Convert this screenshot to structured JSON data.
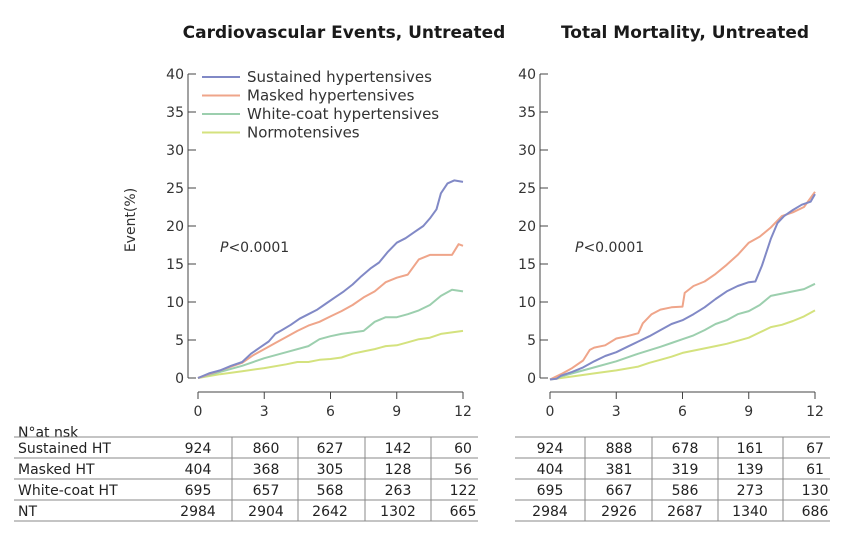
{
  "chart_data": [
    {
      "type": "line",
      "title": "Cardiovascular Events, Untreated",
      "ylabel": "Event(%)",
      "xlabel": "",
      "xlim": [
        0,
        12
      ],
      "ylim": [
        0,
        40
      ],
      "xticks": [
        0,
        3,
        6,
        9,
        12
      ],
      "yticks": [
        0,
        5,
        10,
        15,
        20,
        25,
        30,
        35,
        40
      ],
      "annotation": {
        "italic": "P",
        "text": "<0.0001"
      },
      "legend_position": "top-left",
      "series": [
        {
          "name": "Sustained hypertensives",
          "color": "#8189c6",
          "points": [
            [
              0,
              0
            ],
            [
              0.5,
              0.6
            ],
            [
              1,
              1
            ],
            [
              1.5,
              1.6
            ],
            [
              2,
              2.1
            ],
            [
              2.4,
              3.2
            ],
            [
              2.8,
              4
            ],
            [
              3.2,
              4.8
            ],
            [
              3.5,
              5.8
            ],
            [
              3.8,
              6.3
            ],
            [
              4.2,
              7
            ],
            [
              4.6,
              7.8
            ],
            [
              5,
              8.4
            ],
            [
              5.4,
              9
            ],
            [
              5.8,
              9.8
            ],
            [
              6.2,
              10.6
            ],
            [
              6.6,
              11.4
            ],
            [
              7,
              12.3
            ],
            [
              7.4,
              13.4
            ],
            [
              7.8,
              14.4
            ],
            [
              8.2,
              15.2
            ],
            [
              8.6,
              16.6
            ],
            [
              9,
              17.8
            ],
            [
              9.4,
              18.4
            ],
            [
              9.8,
              19.2
            ],
            [
              10.2,
              20
            ],
            [
              10.5,
              21
            ],
            [
              10.8,
              22.2
            ],
            [
              11,
              24.3
            ],
            [
              11.3,
              25.6
            ],
            [
              11.6,
              26
            ],
            [
              12,
              25.8
            ]
          ]
        },
        {
          "name": "Masked hypertensives",
          "color": "#efa58a",
          "points": [
            [
              0,
              0
            ],
            [
              0.5,
              0.5
            ],
            [
              1,
              1
            ],
            [
              1.5,
              1.5
            ],
            [
              2,
              2
            ],
            [
              2.5,
              3
            ],
            [
              3,
              3.8
            ],
            [
              3.5,
              4.6
            ],
            [
              4,
              5.4
            ],
            [
              4.5,
              6.2
            ],
            [
              5,
              6.9
            ],
            [
              5.5,
              7.4
            ],
            [
              6,
              8.1
            ],
            [
              6.5,
              8.8
            ],
            [
              7,
              9.6
            ],
            [
              7.5,
              10.6
            ],
            [
              8,
              11.4
            ],
            [
              8.5,
              12.6
            ],
            [
              9,
              13.2
            ],
            [
              9.5,
              13.6
            ],
            [
              10,
              15.6
            ],
            [
              10.5,
              16.2
            ],
            [
              11,
              16.2
            ],
            [
              11.5,
              16.2
            ],
            [
              11.8,
              17.6
            ],
            [
              12,
              17.4
            ]
          ]
        },
        {
          "name": "White-coat hypertensives",
          "color": "#9ccfae",
          "points": [
            [
              0,
              0
            ],
            [
              1,
              0.8
            ],
            [
              2,
              1.6
            ],
            [
              3,
              2.6
            ],
            [
              4,
              3.4
            ],
            [
              5,
              4.2
            ],
            [
              5.5,
              5.1
            ],
            [
              6,
              5.5
            ],
            [
              6.5,
              5.8
            ],
            [
              7,
              6
            ],
            [
              7.5,
              6.2
            ],
            [
              8,
              7.4
            ],
            [
              8.5,
              8
            ],
            [
              9,
              8
            ],
            [
              9.5,
              8.4
            ],
            [
              10,
              8.9
            ],
            [
              10.5,
              9.6
            ],
            [
              11,
              10.8
            ],
            [
              11.5,
              11.6
            ],
            [
              12,
              11.4
            ]
          ]
        },
        {
          "name": "Normotensives",
          "color": "#d4e27e",
          "points": [
            [
              0,
              0
            ],
            [
              1,
              0.5
            ],
            [
              2,
              0.9
            ],
            [
              3,
              1.3
            ],
            [
              4,
              1.8
            ],
            [
              4.5,
              2.1
            ],
            [
              5,
              2.1
            ],
            [
              5.5,
              2.4
            ],
            [
              6,
              2.5
            ],
            [
              6.5,
              2.7
            ],
            [
              7,
              3.2
            ],
            [
              7.5,
              3.5
            ],
            [
              8,
              3.8
            ],
            [
              8.5,
              4.2
            ],
            [
              9,
              4.3
            ],
            [
              9.5,
              4.7
            ],
            [
              10,
              5.1
            ],
            [
              10.5,
              5.3
            ],
            [
              11,
              5.8
            ],
            [
              11.5,
              6
            ],
            [
              12,
              6.2
            ]
          ]
        }
      ]
    },
    {
      "type": "line",
      "title": "Total Mortality, Untreated",
      "ylabel": "",
      "xlabel": "",
      "xlim": [
        0,
        12
      ],
      "ylim": [
        0,
        40
      ],
      "xticks": [
        0,
        3,
        6,
        9,
        12
      ],
      "yticks": [
        0,
        5,
        10,
        15,
        20,
        25,
        30,
        35,
        40
      ],
      "annotation": {
        "italic": "P",
        "text": "<0.0001"
      },
      "series": [
        {
          "name": "Sustained hypertensives",
          "color": "#8189c6",
          "points": [
            [
              0,
              -0.2
            ],
            [
              0.3,
              -0.1
            ],
            [
              0.5,
              0.3
            ],
            [
              1,
              0.8
            ],
            [
              1.5,
              1.4
            ],
            [
              2,
              2.2
            ],
            [
              2.5,
              2.9
            ],
            [
              3,
              3.4
            ],
            [
              3.5,
              4.1
            ],
            [
              4,
              4.8
            ],
            [
              4.5,
              5.5
            ],
            [
              5,
              6.3
            ],
            [
              5.5,
              7.1
            ],
            [
              6,
              7.6
            ],
            [
              6.5,
              8.4
            ],
            [
              7,
              9.3
            ],
            [
              7.5,
              10.4
            ],
            [
              8,
              11.4
            ],
            [
              8.5,
              12.1
            ],
            [
              9,
              12.6
            ],
            [
              9.3,
              12.7
            ],
            [
              9.6,
              14.8
            ],
            [
              10,
              18.3
            ],
            [
              10.3,
              20.4
            ],
            [
              10.6,
              21.3
            ],
            [
              11,
              22.1
            ],
            [
              11.4,
              22.8
            ],
            [
              11.8,
              23.2
            ],
            [
              12,
              24.2
            ]
          ]
        },
        {
          "name": "Masked hypertensives",
          "color": "#efa58a",
          "points": [
            [
              0,
              -0.2
            ],
            [
              0.5,
              0.5
            ],
            [
              1,
              1.3
            ],
            [
              1.5,
              2.3
            ],
            [
              1.8,
              3.7
            ],
            [
              2,
              4
            ],
            [
              2.5,
              4.3
            ],
            [
              3,
              5.2
            ],
            [
              3.5,
              5.5
            ],
            [
              4,
              5.9
            ],
            [
              4.2,
              7.2
            ],
            [
              4.6,
              8.4
            ],
            [
              5,
              9
            ],
            [
              5.5,
              9.3
            ],
            [
              6,
              9.4
            ],
            [
              6.1,
              11.2
            ],
            [
              6.5,
              12.1
            ],
            [
              7,
              12.7
            ],
            [
              7.5,
              13.7
            ],
            [
              8,
              14.9
            ],
            [
              8.5,
              16.2
            ],
            [
              9,
              17.8
            ],
            [
              9.5,
              18.6
            ],
            [
              10,
              19.8
            ],
            [
              10.5,
              21.3
            ],
            [
              11,
              21.8
            ],
            [
              11.5,
              22.5
            ],
            [
              12,
              24.5
            ]
          ]
        },
        {
          "name": "White-coat hypertensives",
          "color": "#9ccfae",
          "points": [
            [
              0,
              -0.2
            ],
            [
              1,
              0.6
            ],
            [
              2,
              1.4
            ],
            [
              3,
              2.2
            ],
            [
              4,
              3.2
            ],
            [
              5,
              4.1
            ],
            [
              5.5,
              4.6
            ],
            [
              6,
              5.1
            ],
            [
              6.5,
              5.6
            ],
            [
              7,
              6.3
            ],
            [
              7.5,
              7.1
            ],
            [
              8,
              7.6
            ],
            [
              8.5,
              8.4
            ],
            [
              9,
              8.8
            ],
            [
              9.5,
              9.6
            ],
            [
              10,
              10.8
            ],
            [
              10.5,
              11.1
            ],
            [
              11,
              11.4
            ],
            [
              11.5,
              11.7
            ],
            [
              12,
              12.4
            ]
          ]
        },
        {
          "name": "Normotensives",
          "color": "#d4e27e",
          "points": [
            [
              0,
              -0.2
            ],
            [
              1,
              0.2
            ],
            [
              2,
              0.6
            ],
            [
              3,
              1
            ],
            [
              4,
              1.5
            ],
            [
              4.5,
              2
            ],
            [
              5,
              2.4
            ],
            [
              5.5,
              2.8
            ],
            [
              6,
              3.3
            ],
            [
              6.5,
              3.6
            ],
            [
              7,
              3.9
            ],
            [
              7.5,
              4.2
            ],
            [
              8,
              4.5
            ],
            [
              8.5,
              4.9
            ],
            [
              9,
              5.3
            ],
            [
              9.5,
              6
            ],
            [
              10,
              6.7
            ],
            [
              10.5,
              7
            ],
            [
              11,
              7.5
            ],
            [
              11.5,
              8.1
            ],
            [
              12,
              8.9
            ]
          ]
        }
      ]
    }
  ],
  "risk_table": {
    "header": "N°at nsk",
    "row_labels": [
      "Sustained HT",
      "Masked HT",
      "White-coat HT",
      "NT"
    ],
    "left": [
      [
        "924",
        "860",
        "627",
        "142",
        "60"
      ],
      [
        "404",
        "368",
        "305",
        "128",
        "56"
      ],
      [
        "695",
        "657",
        "568",
        "263",
        "122"
      ],
      [
        "2984",
        "2904",
        "2642",
        "1302",
        "665"
      ]
    ],
    "right": [
      [
        "924",
        "888",
        "678",
        "161",
        "67"
      ],
      [
        "404",
        "381",
        "319",
        "139",
        "61"
      ],
      [
        "695",
        "667",
        "586",
        "273",
        "130"
      ],
      [
        "2984",
        "2926",
        "2687",
        "1340",
        "686"
      ]
    ]
  }
}
